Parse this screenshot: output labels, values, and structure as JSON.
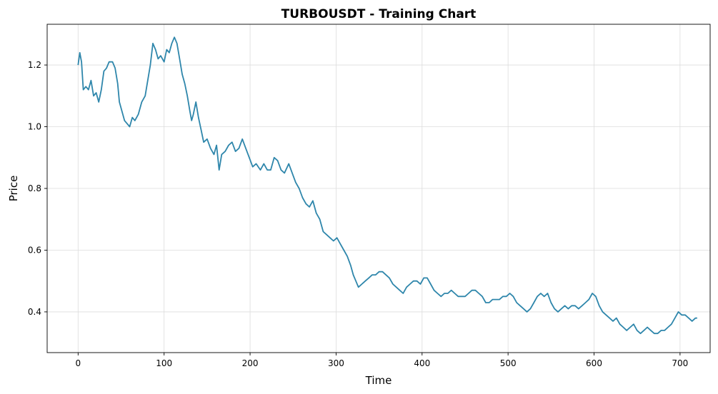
{
  "chart_data": {
    "type": "line",
    "title": "TURBOUSDT - Training Chart",
    "xlabel": "Time",
    "ylabel": "Price",
    "xlim": [
      -36,
      735
    ],
    "ylim": [
      0.268,
      1.332
    ],
    "xticks": [
      0,
      100,
      200,
      300,
      400,
      500,
      600,
      700
    ],
    "yticks": [
      0.4,
      0.6,
      0.8,
      1.0,
      1.2
    ],
    "ytick_labels": [
      "0.4",
      "0.6",
      "0.8",
      "1.0",
      "1.2"
    ],
    "grid": true,
    "series": [
      {
        "name": "Price",
        "color": "#2E86AB",
        "points": [
          [
            0,
            1.2
          ],
          [
            2,
            1.24
          ],
          [
            4,
            1.21
          ],
          [
            6,
            1.12
          ],
          [
            9,
            1.13
          ],
          [
            12,
            1.12
          ],
          [
            15,
            1.15
          ],
          [
            18,
            1.1
          ],
          [
            21,
            1.11
          ],
          [
            24,
            1.08
          ],
          [
            27,
            1.12
          ],
          [
            30,
            1.18
          ],
          [
            33,
            1.19
          ],
          [
            36,
            1.21
          ],
          [
            40,
            1.21
          ],
          [
            43,
            1.19
          ],
          [
            46,
            1.14
          ],
          [
            48,
            1.08
          ],
          [
            51,
            1.05
          ],
          [
            54,
            1.02
          ],
          [
            57,
            1.01
          ],
          [
            60,
            1.0
          ],
          [
            63,
            1.03
          ],
          [
            66,
            1.02
          ],
          [
            70,
            1.04
          ],
          [
            74,
            1.08
          ],
          [
            78,
            1.1
          ],
          [
            81,
            1.15
          ],
          [
            84,
            1.2
          ],
          [
            87,
            1.27
          ],
          [
            90,
            1.25
          ],
          [
            93,
            1.22
          ],
          [
            96,
            1.23
          ],
          [
            100,
            1.21
          ],
          [
            103,
            1.25
          ],
          [
            106,
            1.24
          ],
          [
            109,
            1.27
          ],
          [
            112,
            1.29
          ],
          [
            115,
            1.27
          ],
          [
            118,
            1.22
          ],
          [
            121,
            1.17
          ],
          [
            124,
            1.14
          ],
          [
            127,
            1.1
          ],
          [
            130,
            1.05
          ],
          [
            132,
            1.02
          ],
          [
            134,
            1.04
          ],
          [
            137,
            1.08
          ],
          [
            140,
            1.03
          ],
          [
            143,
            0.99
          ],
          [
            146,
            0.95
          ],
          [
            150,
            0.96
          ],
          [
            154,
            0.93
          ],
          [
            158,
            0.91
          ],
          [
            161,
            0.94
          ],
          [
            164,
            0.86
          ],
          [
            167,
            0.91
          ],
          [
            171,
            0.92
          ],
          [
            175,
            0.94
          ],
          [
            179,
            0.95
          ],
          [
            183,
            0.92
          ],
          [
            187,
            0.93
          ],
          [
            191,
            0.96
          ],
          [
            195,
            0.93
          ],
          [
            199,
            0.9
          ],
          [
            203,
            0.87
          ],
          [
            207,
            0.88
          ],
          [
            212,
            0.86
          ],
          [
            216,
            0.88
          ],
          [
            220,
            0.86
          ],
          [
            224,
            0.86
          ],
          [
            228,
            0.9
          ],
          [
            232,
            0.89
          ],
          [
            236,
            0.86
          ],
          [
            240,
            0.85
          ],
          [
            245,
            0.88
          ],
          [
            249,
            0.85
          ],
          [
            253,
            0.82
          ],
          [
            257,
            0.8
          ],
          [
            261,
            0.77
          ],
          [
            265,
            0.75
          ],
          [
            269,
            0.74
          ],
          [
            273,
            0.76
          ],
          [
            277,
            0.72
          ],
          [
            281,
            0.7
          ],
          [
            285,
            0.66
          ],
          [
            289,
            0.65
          ],
          [
            293,
            0.64
          ],
          [
            297,
            0.63
          ],
          [
            301,
            0.64
          ],
          [
            305,
            0.62
          ],
          [
            309,
            0.6
          ],
          [
            313,
            0.58
          ],
          [
            317,
            0.55
          ],
          [
            320,
            0.52
          ],
          [
            323,
            0.5
          ],
          [
            326,
            0.48
          ],
          [
            330,
            0.49
          ],
          [
            334,
            0.5
          ],
          [
            338,
            0.51
          ],
          [
            342,
            0.52
          ],
          [
            346,
            0.52
          ],
          [
            350,
            0.53
          ],
          [
            354,
            0.53
          ],
          [
            358,
            0.52
          ],
          [
            362,
            0.51
          ],
          [
            366,
            0.49
          ],
          [
            370,
            0.48
          ],
          [
            374,
            0.47
          ],
          [
            378,
            0.46
          ],
          [
            382,
            0.48
          ],
          [
            386,
            0.49
          ],
          [
            390,
            0.5
          ],
          [
            394,
            0.5
          ],
          [
            398,
            0.49
          ],
          [
            402,
            0.51
          ],
          [
            406,
            0.51
          ],
          [
            410,
            0.49
          ],
          [
            414,
            0.47
          ],
          [
            418,
            0.46
          ],
          [
            422,
            0.45
          ],
          [
            426,
            0.46
          ],
          [
            430,
            0.46
          ],
          [
            434,
            0.47
          ],
          [
            438,
            0.46
          ],
          [
            442,
            0.45
          ],
          [
            446,
            0.45
          ],
          [
            450,
            0.45
          ],
          [
            454,
            0.46
          ],
          [
            458,
            0.47
          ],
          [
            462,
            0.47
          ],
          [
            466,
            0.46
          ],
          [
            470,
            0.45
          ],
          [
            474,
            0.43
          ],
          [
            478,
            0.43
          ],
          [
            482,
            0.44
          ],
          [
            486,
            0.44
          ],
          [
            490,
            0.44
          ],
          [
            494,
            0.45
          ],
          [
            498,
            0.45
          ],
          [
            502,
            0.46
          ],
          [
            506,
            0.45
          ],
          [
            510,
            0.43
          ],
          [
            514,
            0.42
          ],
          [
            518,
            0.41
          ],
          [
            522,
            0.4
          ],
          [
            526,
            0.41
          ],
          [
            530,
            0.43
          ],
          [
            534,
            0.45
          ],
          [
            538,
            0.46
          ],
          [
            542,
            0.45
          ],
          [
            546,
            0.46
          ],
          [
            550,
            0.43
          ],
          [
            554,
            0.41
          ],
          [
            558,
            0.4
          ],
          [
            562,
            0.41
          ],
          [
            566,
            0.42
          ],
          [
            570,
            0.41
          ],
          [
            574,
            0.42
          ],
          [
            578,
            0.42
          ],
          [
            582,
            0.41
          ],
          [
            586,
            0.42
          ],
          [
            590,
            0.43
          ],
          [
            594,
            0.44
          ],
          [
            598,
            0.46
          ],
          [
            602,
            0.45
          ],
          [
            606,
            0.42
          ],
          [
            610,
            0.4
          ],
          [
            614,
            0.39
          ],
          [
            618,
            0.38
          ],
          [
            622,
            0.37
          ],
          [
            626,
            0.38
          ],
          [
            630,
            0.36
          ],
          [
            634,
            0.35
          ],
          [
            638,
            0.34
          ],
          [
            642,
            0.35
          ],
          [
            646,
            0.36
          ],
          [
            650,
            0.34
          ],
          [
            654,
            0.33
          ],
          [
            658,
            0.34
          ],
          [
            662,
            0.35
          ],
          [
            666,
            0.34
          ],
          [
            670,
            0.33
          ],
          [
            674,
            0.33
          ],
          [
            678,
            0.34
          ],
          [
            682,
            0.34
          ],
          [
            686,
            0.35
          ],
          [
            690,
            0.36
          ],
          [
            694,
            0.38
          ],
          [
            698,
            0.4
          ],
          [
            702,
            0.39
          ],
          [
            706,
            0.39
          ],
          [
            710,
            0.38
          ],
          [
            714,
            0.37
          ],
          [
            718,
            0.38
          ],
          [
            720,
            0.38
          ]
        ]
      }
    ]
  }
}
